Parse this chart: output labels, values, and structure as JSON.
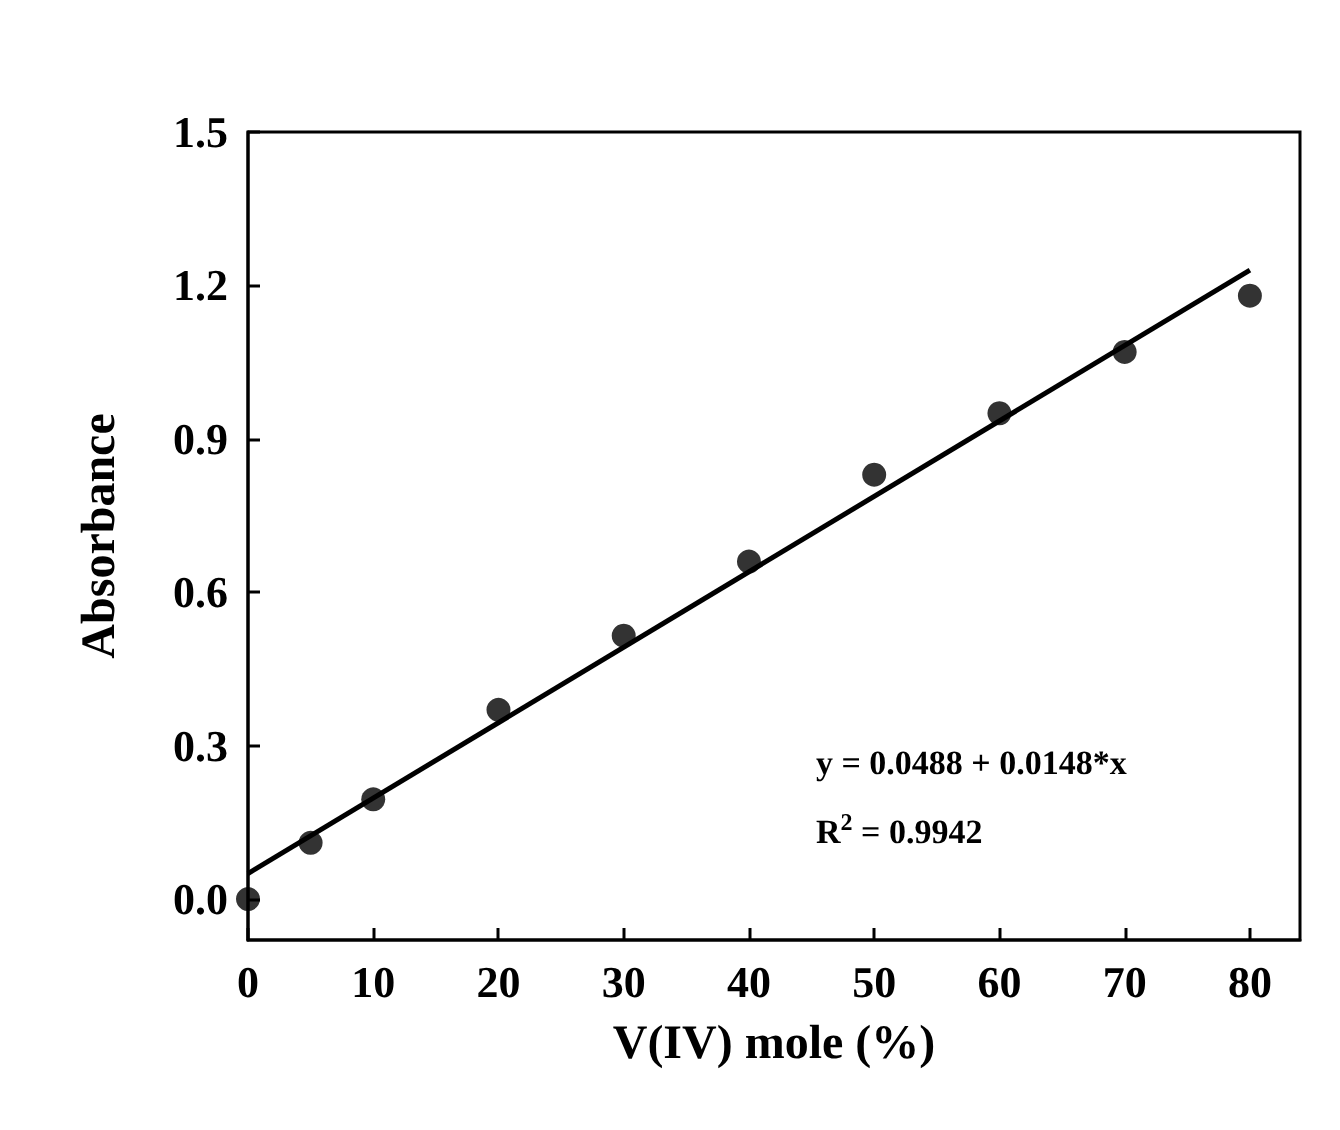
{
  "chart_data": {
    "type": "scatter",
    "xlabel": "V(IV) mole (%)",
    "ylabel": "Absorbance",
    "xlim": [
      0,
      84
    ],
    "ylim": [
      -0.08,
      1.5
    ],
    "xticks": [
      0,
      10,
      20,
      30,
      40,
      50,
      60,
      70,
      80
    ],
    "yticks": [
      {
        "value": 0,
        "label": "0.0"
      },
      {
        "value": 0.3,
        "label": "0.3"
      },
      {
        "value": 0.6,
        "label": "0.6"
      },
      {
        "value": 0.9,
        "label": "0.9"
      },
      {
        "value": 1.2,
        "label": "1.2"
      },
      {
        "value": 1.5,
        "label": "1.5"
      }
    ],
    "grid": false,
    "marker": "circle",
    "annotations": [
      "y = 0.0488 + 0.0148*x",
      "R$^{2}$ = 0.9942"
    ],
    "series": [
      {
        "color": "#000000",
        "x": [
          0,
          5,
          10,
          20,
          30,
          40,
          50,
          60,
          70,
          80
        ],
        "values": [
          0.0,
          0.11,
          0.195,
          0.37,
          0.515,
          0.66,
          0.83,
          0.95,
          1.07,
          1.18
        ]
      },
      {
        "type": "line",
        "marker": "none",
        "color": "#000000",
        "x": [
          0,
          80
        ],
        "values": [
          0.05,
          1.23
        ]
      }
    ]
  }
}
